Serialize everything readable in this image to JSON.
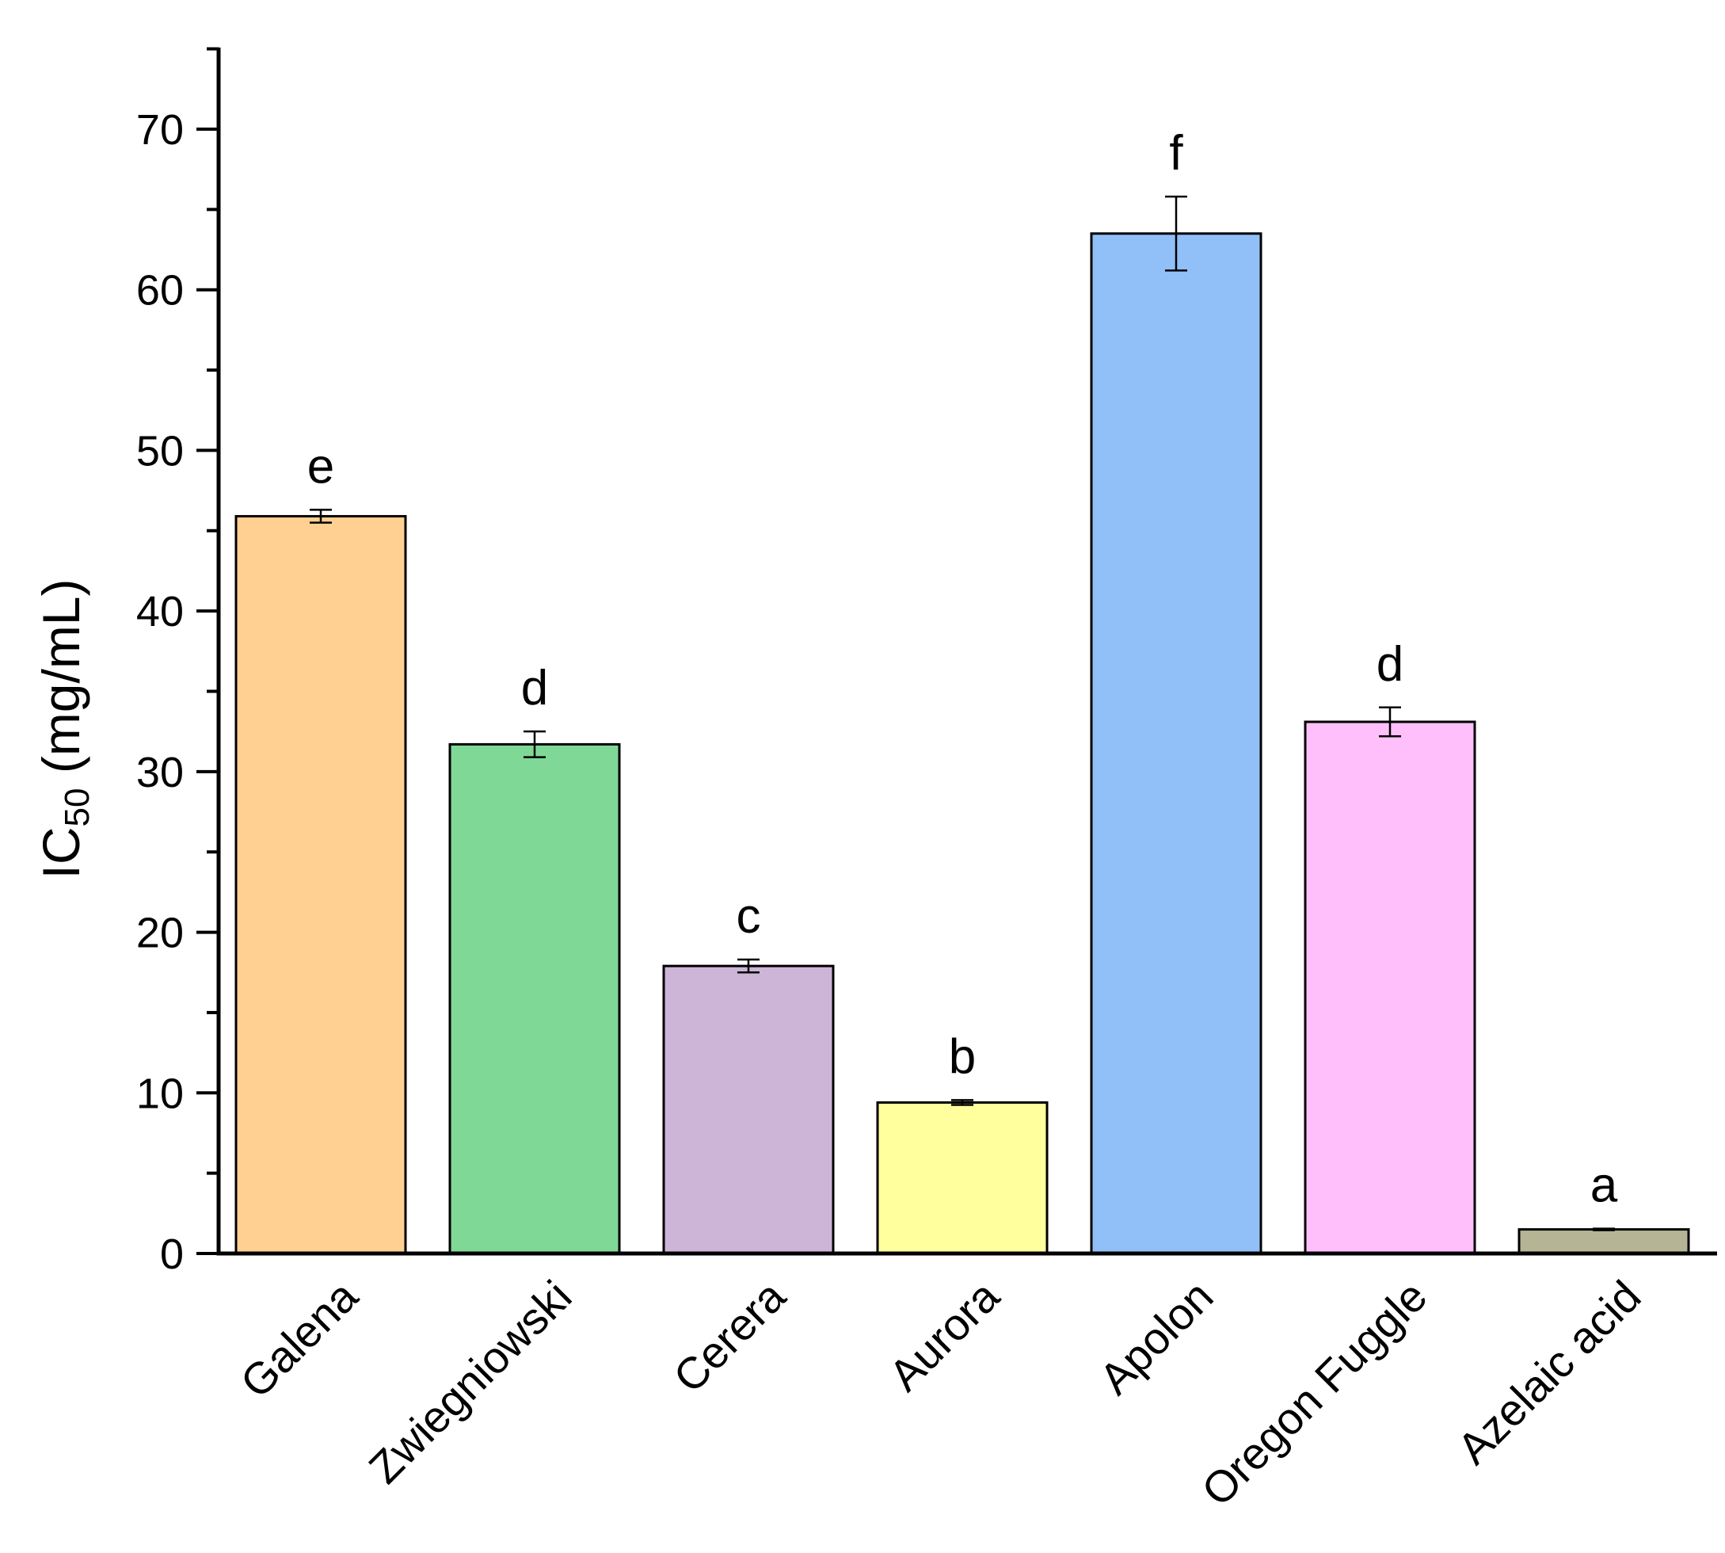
{
  "chart_data": {
    "type": "bar",
    "categories": [
      "Galena",
      "Zwiegniowski",
      "Cerera",
      "Aurora",
      "Apolon",
      "Oregon Fuggle",
      "Azelaic acid"
    ],
    "values": [
      45.9,
      31.7,
      17.9,
      9.4,
      63.5,
      33.1,
      1.5
    ],
    "errors": [
      0.4,
      0.8,
      0.4,
      0.15,
      2.3,
      0.9,
      0.05
    ],
    "significance": [
      "e",
      "d",
      "c",
      "b",
      "f",
      "d",
      "a"
    ],
    "colors": [
      "#FFD092",
      "#80D896",
      "#CDB5D8",
      "#FFFF9E",
      "#91BFF8",
      "#FFBFFB",
      "#B5B596"
    ],
    "ylabel_main": "IC",
    "ylabel_sub": "50",
    "ylabel_unit": " (mg/mL)",
    "ylim": [
      0,
      75
    ],
    "yticks": [
      0,
      10,
      20,
      30,
      40,
      50,
      60,
      70
    ],
    "grid": false,
    "legend": "none"
  }
}
